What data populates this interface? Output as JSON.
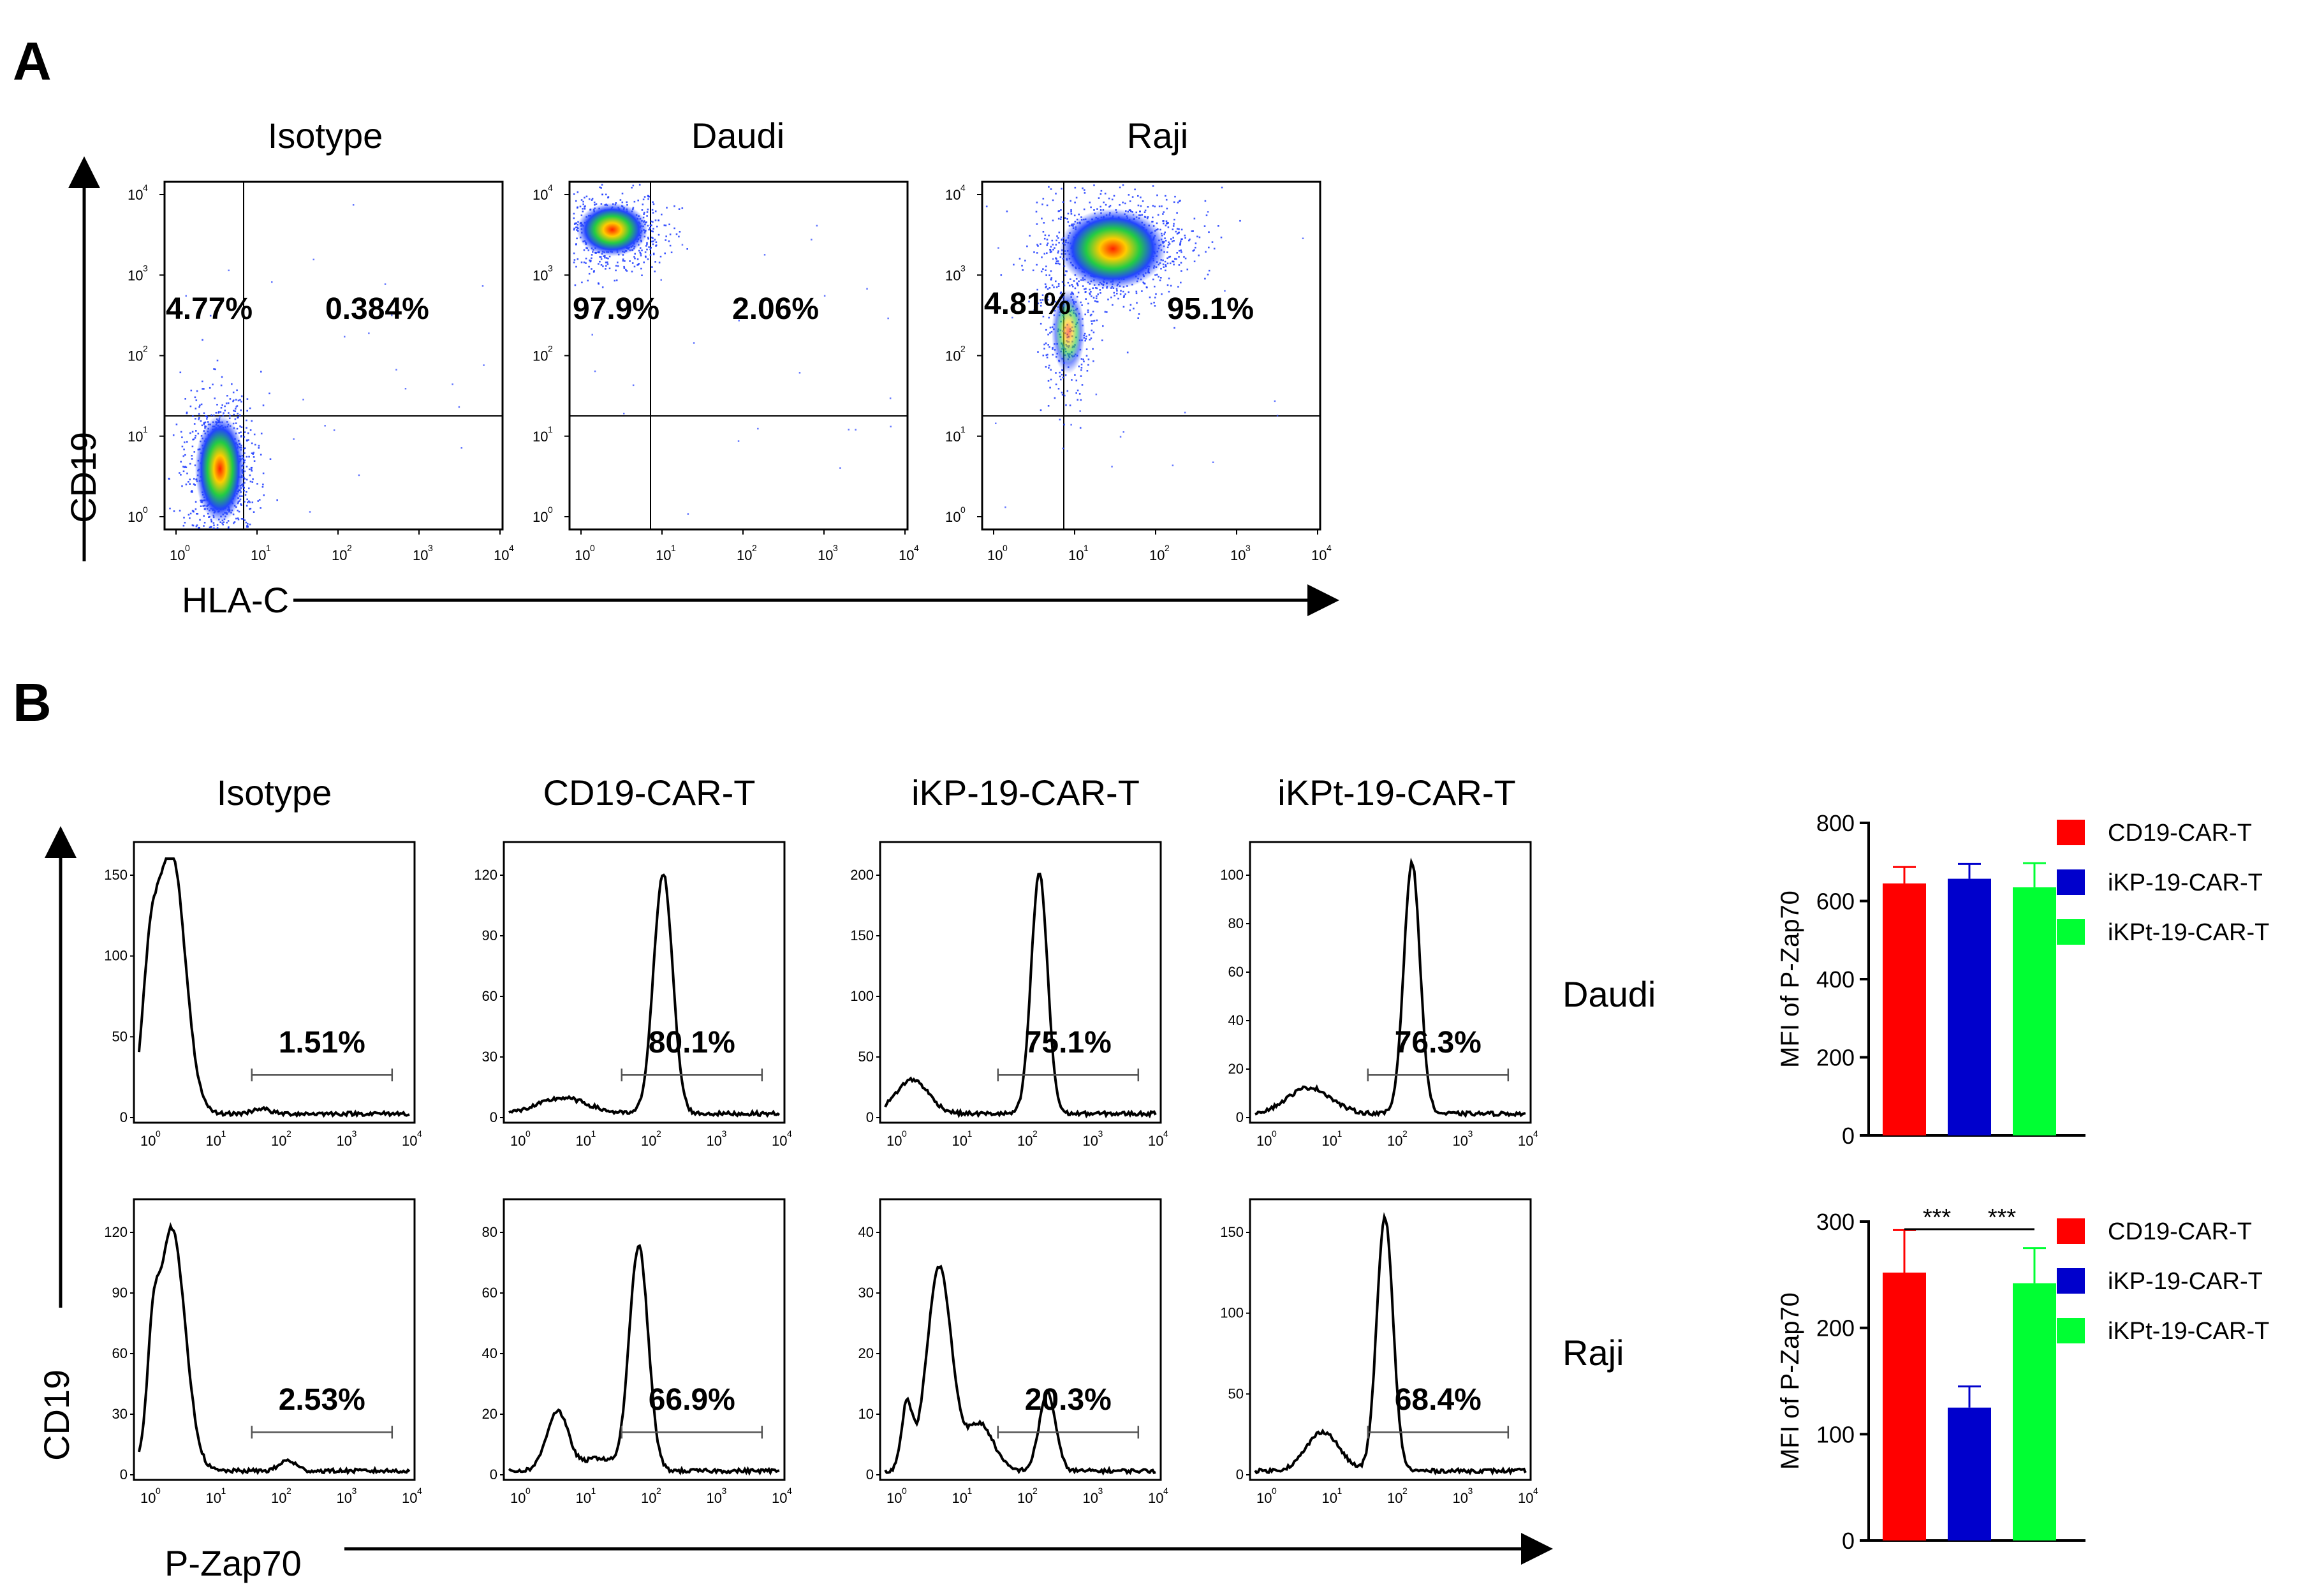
{
  "panelA": {
    "letter": "A",
    "xlabel": "HLA-C",
    "ylabel": "CD19",
    "plots": [
      {
        "title": "Isotype",
        "left_pct": "4.77%",
        "right_pct": "0.384%"
      },
      {
        "title": "Daudi",
        "left_pct": "97.9%",
        "right_pct": "2.06%"
      },
      {
        "title": "Raji",
        "left_pct": "4.81%",
        "right_pct": "95.1%"
      }
    ],
    "log_ticks": [
      "10",
      "10",
      "10",
      "10",
      "10"
    ],
    "log_exps": [
      "0",
      "1",
      "2",
      "3",
      "4"
    ]
  },
  "panelB": {
    "letter": "B",
    "xlabel": "P-Zap70",
    "ylabel": "CD19",
    "columns": [
      "Isotype",
      "CD19-CAR-T",
      "iKP-19-CAR-T",
      "iKPt-19-CAR-T"
    ],
    "rows": [
      "Daudi",
      "Raji"
    ],
    "percentages": [
      [
        "1.51%",
        "80.1%",
        "75.1%",
        "76.3%"
      ],
      [
        "2.53%",
        "66.9%",
        "20.3%",
        "68.4%"
      ]
    ],
    "yticks": [
      [
        [
          "0",
          "50",
          "100",
          "150"
        ],
        [
          "0",
          "30",
          "60",
          "90",
          "120"
        ],
        [
          "0",
          "50",
          "100",
          "150",
          "200"
        ],
        [
          "0",
          "20",
          "40",
          "60",
          "80",
          "100"
        ]
      ],
      [
        [
          "0",
          "30",
          "60",
          "90",
          "120"
        ],
        [
          "0",
          "20",
          "40",
          "60",
          "80"
        ],
        [
          "0",
          "10",
          "20",
          "30",
          "40"
        ],
        [
          "0",
          "50",
          "100",
          "150"
        ]
      ]
    ]
  },
  "chart_data": [
    {
      "type": "bar",
      "title": "",
      "ylabel": "MFI of P-Zap70",
      "xlabel": "",
      "ylim": [
        0,
        800
      ],
      "yticks": [
        "0",
        "200",
        "400",
        "600",
        "800"
      ],
      "categories": [
        "CD19-CAR-T",
        "iKP-19-CAR-T",
        "iKPt-19-CAR-T"
      ],
      "values": [
        645,
        657,
        635
      ],
      "errors": [
        42,
        38,
        62
      ],
      "colors": [
        "#ff0000",
        "#0000cc",
        "#00ff33"
      ],
      "row_label": "Daudi",
      "significance": []
    },
    {
      "type": "bar",
      "title": "",
      "ylabel": "MFI of P-Zap70",
      "xlabel": "",
      "ylim": [
        0,
        300
      ],
      "yticks": [
        "0",
        "100",
        "200",
        "300"
      ],
      "categories": [
        "CD19-CAR-T",
        "iKP-19-CAR-T",
        "iKPt-19-CAR-T"
      ],
      "values": [
        252,
        125,
        242
      ],
      "errors": [
        40,
        20,
        33
      ],
      "colors": [
        "#ff0000",
        "#0000cc",
        "#00ff33"
      ],
      "row_label": "Raji",
      "significance": [
        "***",
        "***"
      ]
    }
  ]
}
